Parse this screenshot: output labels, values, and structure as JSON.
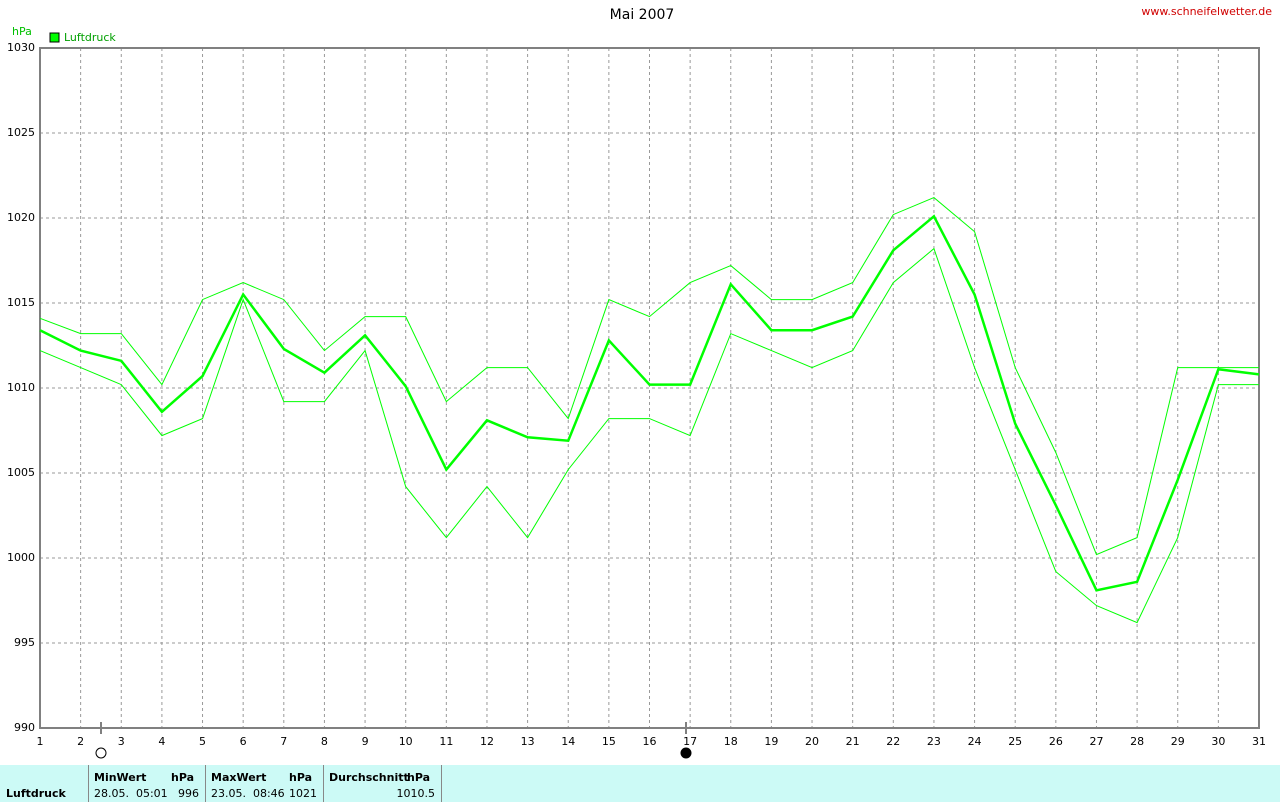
{
  "chart_data": {
    "type": "line",
    "title": "Mai 2007",
    "source": "www.schneifelwetter.de",
    "y_label": "hPa",
    "x": [
      1,
      2,
      3,
      4,
      5,
      6,
      7,
      8,
      9,
      10,
      11,
      12,
      13,
      14,
      15,
      16,
      17,
      18,
      19,
      20,
      21,
      22,
      23,
      24,
      25,
      26,
      27,
      28,
      29,
      30,
      31
    ],
    "xlim": [
      1,
      31
    ],
    "xticks": [
      1,
      2,
      3,
      4,
      5,
      6,
      7,
      8,
      9,
      10,
      11,
      12,
      13,
      14,
      15,
      16,
      17,
      18,
      19,
      20,
      21,
      22,
      23,
      24,
      25,
      26,
      27,
      28,
      29,
      30,
      31
    ],
    "ylim": [
      990,
      1030
    ],
    "yticks": [
      990,
      995,
      1000,
      1005,
      1010,
      1015,
      1020,
      1025,
      1030
    ],
    "grid": true,
    "series": [
      {
        "name": "Luftdruck",
        "color": "#00ff00",
        "values": [
          1013.4,
          1012.2,
          1011.6,
          1008.6,
          1010.7,
          1015.5,
          1012.3,
          1010.9,
          1013.1,
          1010.1,
          1005.2,
          1008.1,
          1007.1,
          1006.9,
          1012.8,
          1010.2,
          1010.2,
          1016.1,
          1013.4,
          1013.4,
          1014.2,
          1018.1,
          1020.1,
          1015.5,
          1007.9,
          1003.1,
          998.1,
          998.6,
          1004.6,
          1011.1,
          1010.8
        ]
      },
      {
        "color": "#00ff00",
        "values": [
          1014.1,
          1013.2,
          1013.2,
          1010.2,
          1015.2,
          1016.2,
          1015.2,
          1012.2,
          1014.2,
          1014.2,
          1009.2,
          1011.2,
          1011.2,
          1008.2,
          1015.2,
          1014.2,
          1016.2,
          1017.2,
          1015.2,
          1015.2,
          1016.2,
          1020.2,
          1021.2,
          1019.2,
          1011.2,
          1006.2,
          1000.2,
          1001.2,
          1011.2,
          1011.2,
          1011.2
        ]
      },
      {
        "color": "#00ff00",
        "values": [
          1012.2,
          1011.2,
          1010.2,
          1007.2,
          1008.2,
          1015.2,
          1009.2,
          1009.2,
          1012.2,
          1004.2,
          1001.2,
          1004.2,
          1001.2,
          1005.2,
          1008.2,
          1008.2,
          1007.2,
          1013.2,
          1012.2,
          1011.2,
          1012.2,
          1016.2,
          1018.2,
          1011.2,
          1005.2,
          999.2,
          997.2,
          996.2,
          1001.2,
          1010.2,
          1010.2
        ]
      }
    ]
  },
  "summary": {
    "label": "Luftdruck",
    "columns": [
      {
        "title": "MinWert",
        "unit": "hPa",
        "time": "28.05.  05:01",
        "value": 996
      },
      {
        "title": "MaxWert",
        "unit": "hPa",
        "time": "23.05.  08:46",
        "value": 1021
      },
      {
        "title": "Durchschnitt",
        "unit": "hPa",
        "value": 1010.5
      }
    ]
  }
}
